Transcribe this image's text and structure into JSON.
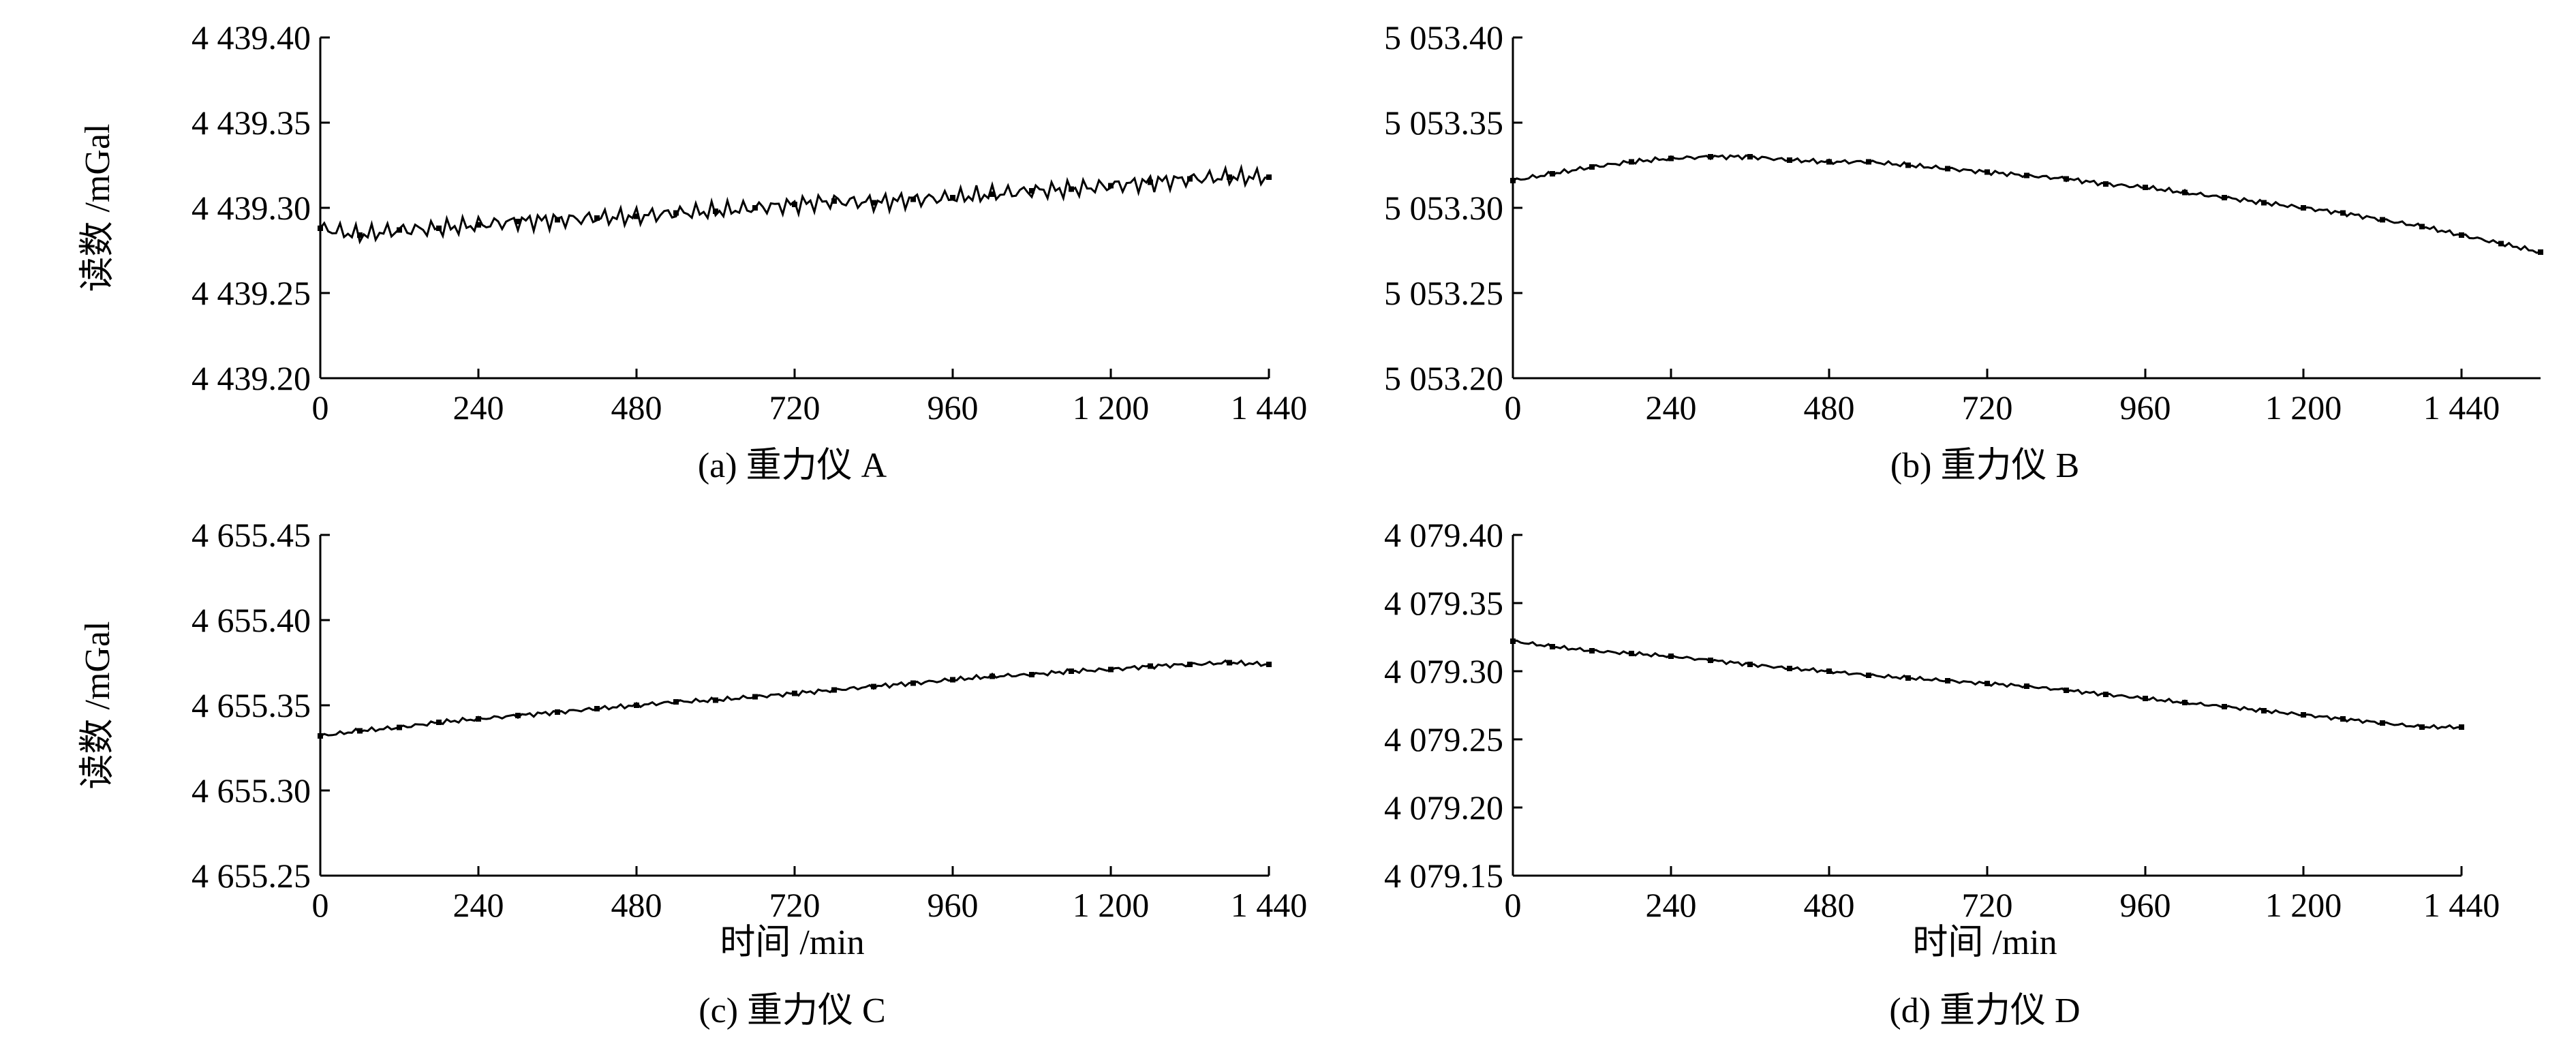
{
  "figure": {
    "ylabel": "读数 /mGal",
    "xlabel": "时间 /min"
  },
  "chart_data": [
    {
      "id": "a",
      "type": "line",
      "caption": "(a) 重力仪 A",
      "ylabel": "读数 /mGal",
      "xlabel": "",
      "xlim": [
        0,
        1440
      ],
      "ylim": [
        4439.2,
        4439.4
      ],
      "xticks": [
        0,
        240,
        480,
        720,
        960,
        1200,
        1440
      ],
      "xtick_labels": [
        "0",
        "240",
        "480",
        "720",
        "960",
        "1 200",
        "1 440"
      ],
      "yticks": [
        4439.2,
        4439.25,
        4439.3,
        4439.35,
        4439.4
      ],
      "ytick_labels": [
        "4 439.20",
        "4 439.25",
        "4 439.30",
        "4 439.35",
        "4 439.40"
      ],
      "x": [
        0,
        60,
        120,
        180,
        240,
        300,
        360,
        420,
        480,
        540,
        600,
        660,
        720,
        780,
        840,
        900,
        960,
        1020,
        1080,
        1140,
        1200,
        1260,
        1320,
        1380,
        1440
      ],
      "y": [
        4439.288,
        4439.284,
        4439.287,
        4439.288,
        4439.29,
        4439.292,
        4439.293,
        4439.294,
        4439.295,
        4439.297,
        4439.298,
        4439.3,
        4439.302,
        4439.304,
        4439.303,
        4439.305,
        4439.306,
        4439.308,
        4439.31,
        4439.311,
        4439.313,
        4439.315,
        4439.317,
        4439.318,
        4439.318
      ]
    },
    {
      "id": "b",
      "type": "line",
      "caption": "(b) 重力仪 B",
      "ylabel": "",
      "xlabel": "",
      "xlim": [
        0,
        1560
      ],
      "ylim": [
        5053.2,
        5053.4
      ],
      "xticks": [
        0,
        240,
        480,
        720,
        960,
        1200,
        1440
      ],
      "xtick_labels": [
        "0",
        "240",
        "480",
        "720",
        "960",
        "1 200",
        "1 440"
      ],
      "yticks": [
        5053.2,
        5053.25,
        5053.3,
        5053.35,
        5053.4
      ],
      "ytick_labels": [
        "5 053.20",
        "5 053.25",
        "5 053.30",
        "5 053.35",
        "5 053.40"
      ],
      "x": [
        0,
        60,
        120,
        180,
        240,
        300,
        360,
        420,
        480,
        540,
        600,
        660,
        720,
        780,
        840,
        900,
        960,
        1020,
        1080,
        1140,
        1200,
        1260,
        1320,
        1380,
        1440,
        1500,
        1560
      ],
      "y": [
        5053.316,
        5053.32,
        5053.324,
        5053.327,
        5053.329,
        5053.33,
        5053.33,
        5053.328,
        5053.327,
        5053.327,
        5053.325,
        5053.323,
        5053.321,
        5053.319,
        5053.317,
        5053.314,
        5053.312,
        5053.309,
        5053.306,
        5053.303,
        5053.3,
        5053.297,
        5053.293,
        5053.289,
        5053.284,
        5053.279,
        5053.274
      ]
    },
    {
      "id": "c",
      "type": "line",
      "caption": "(c) 重力仪 C",
      "ylabel": "读数 /mGal",
      "xlabel": "时间 /min",
      "xlim": [
        0,
        1440
      ],
      "ylim": [
        4655.25,
        4655.45
      ],
      "xticks": [
        0,
        240,
        480,
        720,
        960,
        1200,
        1440
      ],
      "xtick_labels": [
        "0",
        "240",
        "480",
        "720",
        "960",
        "1 200",
        "1 440"
      ],
      "yticks": [
        4655.25,
        4655.3,
        4655.35,
        4655.4,
        4655.45
      ],
      "ytick_labels": [
        "4 655.25",
        "4 655.30",
        "4 655.35",
        "4 655.40",
        "4 655.45"
      ],
      "x": [
        0,
        60,
        120,
        180,
        240,
        300,
        360,
        420,
        480,
        540,
        600,
        660,
        720,
        780,
        840,
        900,
        960,
        1020,
        1080,
        1140,
        1200,
        1260,
        1320,
        1380,
        1440
      ],
      "y": [
        4655.332,
        4655.335,
        4655.337,
        4655.34,
        4655.342,
        4655.344,
        4655.346,
        4655.348,
        4655.35,
        4655.352,
        4655.353,
        4655.355,
        4655.357,
        4655.359,
        4655.361,
        4655.363,
        4655.365,
        4655.367,
        4655.368,
        4655.37,
        4655.371,
        4655.373,
        4655.374,
        4655.375,
        4655.374
      ]
    },
    {
      "id": "d",
      "type": "line",
      "caption": "(d) 重力仪 D",
      "ylabel": "",
      "xlabel": "时间 /min",
      "xlim": [
        0,
        1440
      ],
      "ylim": [
        4079.15,
        4079.4
      ],
      "xticks": [
        0,
        240,
        480,
        720,
        960,
        1200,
        1440
      ],
      "xtick_labels": [
        "0",
        "240",
        "480",
        "720",
        "960",
        "1 200",
        "1 440"
      ],
      "yticks": [
        4079.15,
        4079.2,
        4079.25,
        4079.3,
        4079.35,
        4079.4
      ],
      "ytick_labels": [
        "4 079.15",
        "4 079.20",
        "4 079.25",
        "4 079.30",
        "4 079.35",
        "4 079.40"
      ],
      "x": [
        0,
        60,
        120,
        180,
        240,
        300,
        360,
        420,
        480,
        540,
        600,
        660,
        720,
        780,
        840,
        900,
        960,
        1020,
        1080,
        1140,
        1200,
        1260,
        1320,
        1380,
        1440
      ],
      "y": [
        4079.322,
        4079.318,
        4079.315,
        4079.313,
        4079.311,
        4079.308,
        4079.305,
        4079.302,
        4079.3,
        4079.297,
        4079.295,
        4079.293,
        4079.291,
        4079.289,
        4079.286,
        4079.283,
        4079.28,
        4079.277,
        4079.274,
        4079.271,
        4079.268,
        4079.265,
        4079.262,
        4079.259,
        4079.259
      ]
    }
  ]
}
